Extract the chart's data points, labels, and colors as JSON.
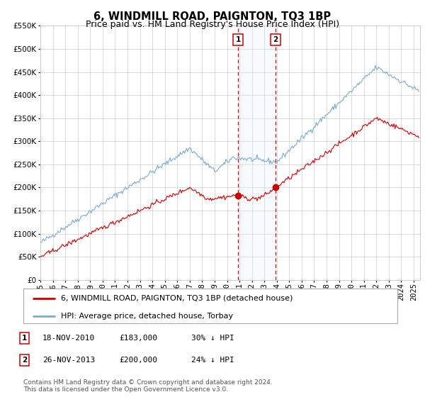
{
  "title": "6, WINDMILL ROAD, PAIGNTON, TQ3 1BP",
  "subtitle": "Price paid vs. HM Land Registry's House Price Index (HPI)",
  "legend_entry1": "6, WINDMILL ROAD, PAIGNTON, TQ3 1BP (detached house)",
  "legend_entry2": "HPI: Average price, detached house, Torbay",
  "footnote1": "Contains HM Land Registry data © Crown copyright and database right 2024.",
  "footnote2": "This data is licensed under the Open Government Licence v3.0.",
  "event1_label": "1",
  "event1_date": "18-NOV-2010",
  "event1_price": "£183,000",
  "event1_hpi": "30% ↓ HPI",
  "event1_x": 2010.88,
  "event1_y": 183000,
  "event2_label": "2",
  "event2_date": "26-NOV-2013",
  "event2_price": "£200,000",
  "event2_hpi": "24% ↓ HPI",
  "event2_x": 2013.9,
  "event2_y": 200000,
  "shade_x1": 2010.88,
  "shade_x2": 2013.9,
  "ylim": [
    0,
    550000
  ],
  "xlim_start": 1995.0,
  "xlim_end": 2025.5,
  "red_line_color": "#cc0000",
  "blue_line_color": "#7aabcf",
  "dot_color": "#cc0000",
  "shade_color": "#ddeeff",
  "vline_color": "#cc0000",
  "grid_color": "#cccccc",
  "bg_color": "#ffffff",
  "title_fontsize": 10.5,
  "subtitle_fontsize": 9,
  "axis_label_fontsize": 7.5,
  "legend_fontsize": 8,
  "footnote_fontsize": 6.5
}
